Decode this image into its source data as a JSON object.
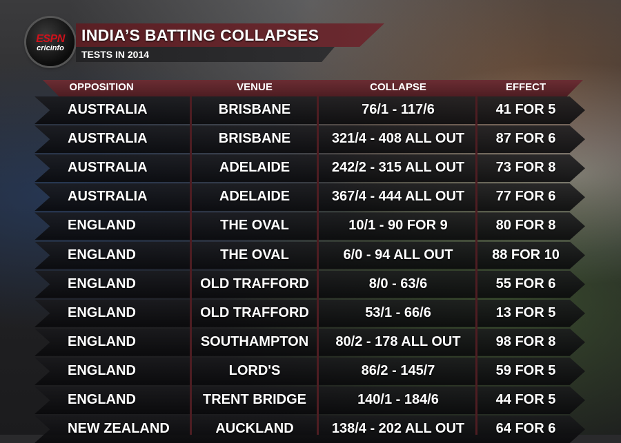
{
  "logo": {
    "brand": "ESPN",
    "sub": "cricinfo"
  },
  "header": {
    "title": "INDIA’S BATTING COLLAPSES",
    "subtitle": "TESTS IN 2014"
  },
  "columns": [
    "OPPOSITION",
    "VENUE",
    "COLLAPSE",
    "EFFECT"
  ],
  "rows": [
    {
      "opposition": "AUSTRALIA",
      "venue": "BRISBANE",
      "collapse": "76/1 - 117/6",
      "effect": "41 FOR 5"
    },
    {
      "opposition": "AUSTRALIA",
      "venue": "BRISBANE",
      "collapse": "321/4 - 408 ALL OUT",
      "effect": "87 FOR 6"
    },
    {
      "opposition": "AUSTRALIA",
      "venue": "ADELAIDE",
      "collapse": "242/2 - 315 ALL OUT",
      "effect": "73 FOR 8"
    },
    {
      "opposition": "AUSTRALIA",
      "venue": "ADELAIDE",
      "collapse": "367/4 - 444 ALL OUT",
      "effect": "77 FOR 6"
    },
    {
      "opposition": "ENGLAND",
      "venue": "THE OVAL",
      "collapse": "10/1 - 90 FOR 9",
      "effect": "80 FOR 8"
    },
    {
      "opposition": "ENGLAND",
      "venue": "THE OVAL",
      "collapse": "6/0 - 94 ALL OUT",
      "effect": "88 FOR 10"
    },
    {
      "opposition": "ENGLAND",
      "venue": "OLD TRAFFORD",
      "collapse": "8/0 - 63/6",
      "effect": "55 FOR 6"
    },
    {
      "opposition": "ENGLAND",
      "venue": "OLD TRAFFORD",
      "collapse": "53/1 - 66/6",
      "effect": "13 FOR 5"
    },
    {
      "opposition": "ENGLAND",
      "venue": "SOUTHAMPTON",
      "collapse": "80/2 - 178 ALL OUT",
      "effect": "98 FOR 8"
    },
    {
      "opposition": "ENGLAND",
      "venue": "LORD'S",
      "collapse": "86/2 - 145/7",
      "effect": "59 FOR 5"
    },
    {
      "opposition": "ENGLAND",
      "venue": "TRENT BRIDGE",
      "collapse": "140/1 - 184/6",
      "effect": "44 FOR 5"
    },
    {
      "opposition": "NEW ZEALAND",
      "venue": "AUCKLAND",
      "collapse": "138/4 - 202 ALL OUT",
      "effect": "64 FOR 6"
    }
  ],
  "colors": {
    "accent": "#5a1f24",
    "header_band": "#6a2d33",
    "text": "#ffffff",
    "logo_red": "#d0111b"
  }
}
